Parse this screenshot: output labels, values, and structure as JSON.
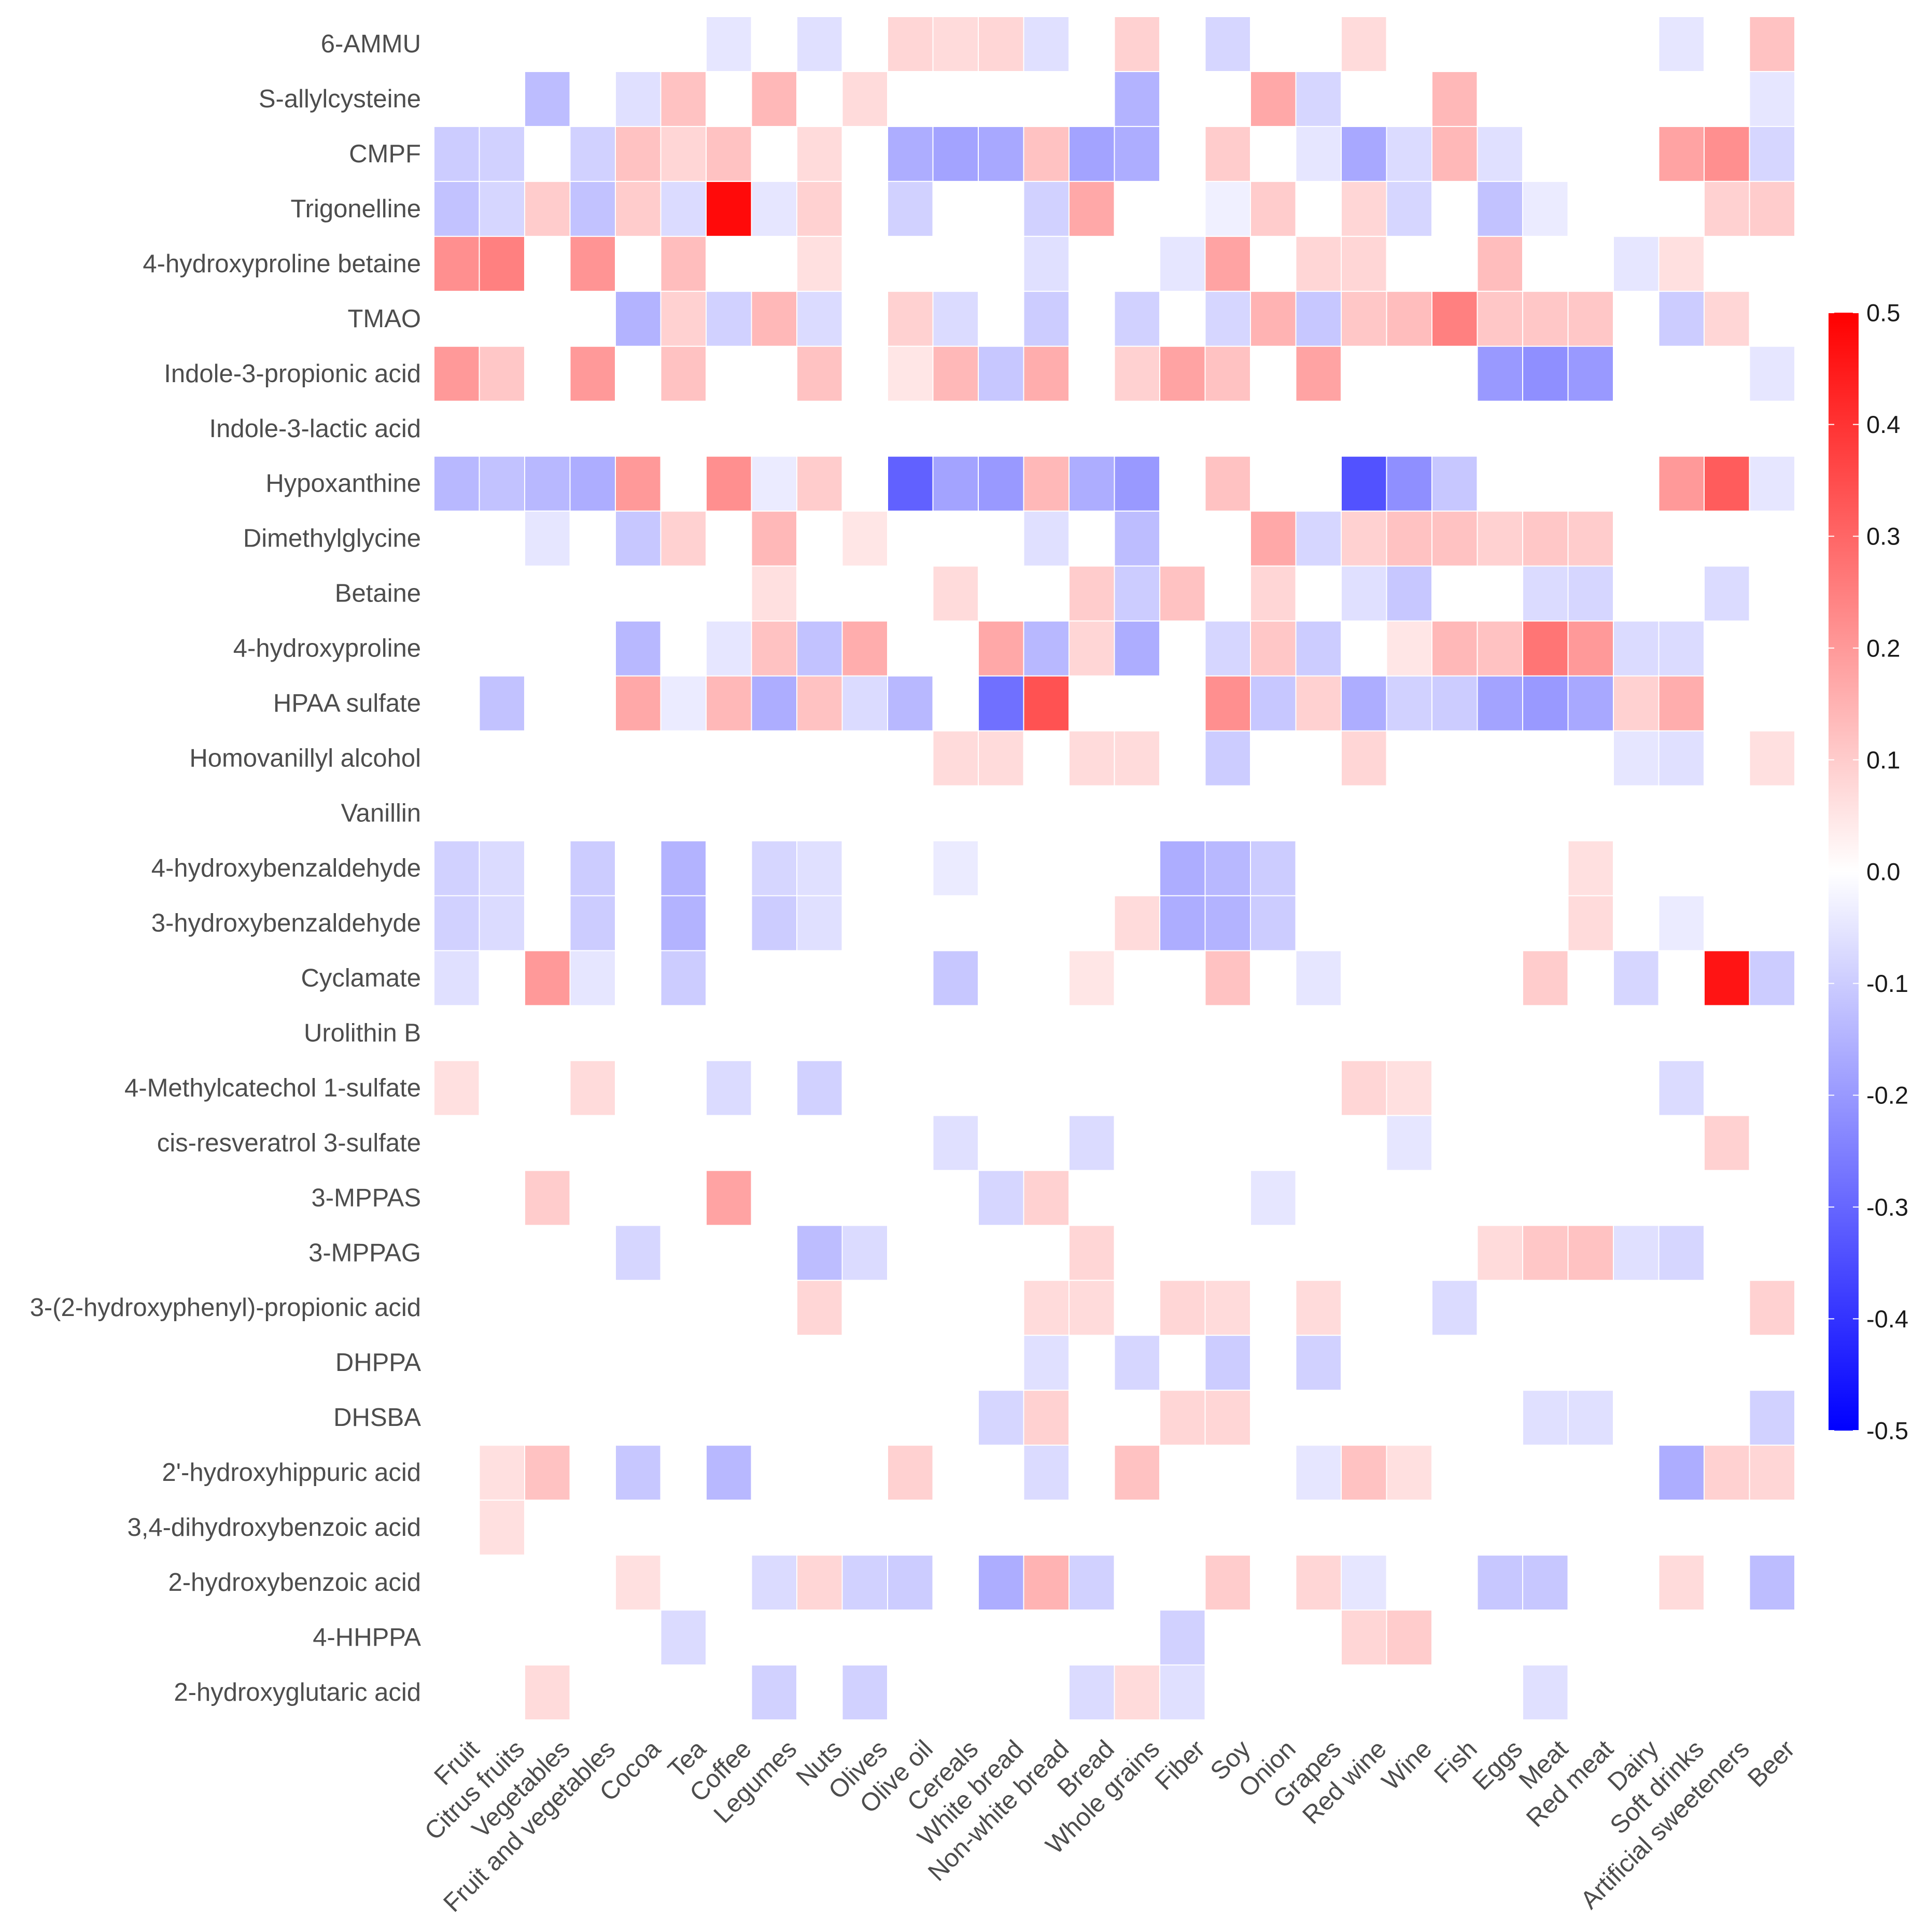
{
  "chart_data": {
    "type": "heatmap",
    "title": "",
    "xlabel": "",
    "ylabel": "",
    "x_categories": [
      "Fruit",
      "Citrus fruits",
      "Vegetables",
      "Fruit and vegetables",
      "Cocoa",
      "Tea",
      "Coffee",
      "Legumes",
      "Nuts",
      "Olives",
      "Olive oil",
      "Cereals",
      "White bread",
      "Non-white bread",
      "Bread",
      "Whole grains",
      "Fiber",
      "Soy",
      "Onion",
      "Grapes",
      "Red wine",
      "Wine",
      "Fish",
      "Eggs",
      "Meat",
      "Red meat",
      "Dairy",
      "Soft drinks",
      "Artificial sweeteners",
      "Beer"
    ],
    "y_categories": [
      "6-AMMU",
      "S-allylcysteine",
      "CMPF",
      "Trigonelline",
      "4-hydroxyproline betaine",
      "TMAO",
      "Indole-3-propionic acid",
      "Indole-3-lactic acid",
      "Hypoxanthine",
      "Dimethylglycine",
      "Betaine",
      "4-hydroxyproline",
      "HPAA sulfate",
      "Homovanillyl alcohol",
      "Vanillin",
      "4-hydroxybenzaldehyde",
      "3-hydroxybenzaldehyde",
      "Cyclamate",
      "Urolithin B",
      "4-Methylcatechol 1-sulfate",
      "cis-resveratrol 3-sulfate",
      "3-MPPAS",
      "3-MPPAG",
      "3-(2-hydroxyphenyl)-propionic acid",
      "DHPPA",
      "DHSBA",
      "2'-hydroxyhippuric acid",
      "3,4-dihydroxybenzoic acid",
      "2-hydroxybenzoic acid",
      "4-HHPPA",
      "2-hydroxyglutaric acid"
    ],
    "values": [
      [
        0,
        0,
        0,
        0,
        0,
        0,
        -0.05,
        0,
        -0.06,
        0,
        0.08,
        0.07,
        0.08,
        -0.06,
        0,
        0.09,
        0,
        -0.08,
        0,
        0,
        0.07,
        0,
        0,
        0,
        0,
        0,
        0,
        -0.05,
        0,
        0.12
      ],
      [
        0,
        0,
        -0.13,
        0,
        -0.06,
        0.12,
        0,
        0.14,
        0,
        0.07,
        0,
        0,
        0,
        0,
        0,
        -0.15,
        0,
        0,
        0.17,
        -0.08,
        0,
        0,
        0.14,
        0,
        0,
        0,
        0,
        0,
        0,
        -0.05
      ],
      [
        -0.1,
        -0.09,
        0,
        -0.09,
        0.12,
        0.08,
        0.12,
        0,
        0.07,
        0,
        -0.16,
        -0.18,
        -0.17,
        0.12,
        -0.18,
        -0.16,
        0,
        0.1,
        0,
        -0.05,
        -0.17,
        -0.07,
        0.14,
        -0.06,
        0,
        0,
        0,
        0.18,
        0.22,
        -0.08
      ],
      [
        -0.12,
        -0.08,
        0.1,
        -0.12,
        0.1,
        -0.07,
        0.48,
        -0.05,
        0.09,
        0,
        -0.09,
        0,
        0,
        -0.09,
        0.17,
        0,
        0,
        -0.03,
        0.1,
        0,
        0.08,
        -0.08,
        0,
        -0.12,
        -0.04,
        0,
        0,
        0,
        0.09,
        0.1
      ],
      [
        0.22,
        0.25,
        0,
        0.21,
        0,
        0.13,
        0,
        0,
        0.06,
        0,
        0,
        0,
        0,
        -0.06,
        0,
        0,
        -0.05,
        0.18,
        0,
        0.08,
        0.08,
        0,
        0,
        0.13,
        0,
        0,
        -0.05,
        0.06,
        0,
        0
      ],
      [
        0,
        0,
        0,
        0,
        -0.15,
        0.09,
        -0.09,
        0.14,
        -0.07,
        0,
        0.09,
        -0.07,
        0,
        -0.1,
        0,
        -0.09,
        0,
        -0.08,
        0.15,
        -0.11,
        0.11,
        0.13,
        0.25,
        0.11,
        0.11,
        0.11,
        0,
        -0.1,
        0.08,
        0
      ],
      [
        0.2,
        0.11,
        0,
        0.2,
        0,
        0.12,
        0,
        0,
        0.12,
        0,
        0.05,
        0.14,
        -0.11,
        0.16,
        0,
        0.09,
        0.18,
        0.12,
        0,
        0.18,
        0,
        0,
        0,
        -0.2,
        -0.22,
        -0.2,
        0,
        0,
        0,
        -0.05
      ],
      [
        0,
        0,
        0,
        0,
        0,
        0,
        0,
        0,
        0,
        0,
        0,
        0,
        0,
        0,
        0,
        0,
        0,
        0,
        0,
        0,
        0,
        0,
        0,
        0,
        0,
        0,
        0,
        0,
        0,
        0
      ],
      [
        -0.14,
        -0.12,
        -0.14,
        -0.16,
        0.2,
        0,
        0.22,
        -0.04,
        0.1,
        0,
        -0.31,
        -0.18,
        -0.2,
        0.14,
        -0.16,
        -0.2,
        0,
        0.12,
        0,
        0,
        -0.34,
        -0.22,
        -0.11,
        0,
        0,
        0,
        0,
        0.2,
        0.32,
        -0.05
      ],
      [
        0,
        0,
        -0.05,
        0,
        -0.11,
        0.09,
        0,
        0.14,
        0,
        0.05,
        0,
        0,
        0,
        -0.06,
        0,
        -0.13,
        0,
        0,
        0.17,
        -0.08,
        0.09,
        0.12,
        0.12,
        0.09,
        0.11,
        0.1,
        0,
        0,
        0,
        0
      ],
      [
        0,
        0,
        0,
        0,
        0,
        0,
        0,
        0.06,
        0,
        0,
        0,
        0.07,
        0,
        0,
        0.1,
        -0.1,
        0.12,
        0,
        0.08,
        0,
        -0.06,
        -0.11,
        0,
        0,
        -0.07,
        -0.08,
        0,
        0,
        -0.07,
        0
      ],
      [
        0,
        0,
        0,
        0,
        -0.14,
        0,
        -0.05,
        0.12,
        -0.12,
        0.16,
        0,
        0,
        0.17,
        -0.14,
        0.08,
        -0.16,
        0,
        -0.08,
        0.11,
        -0.1,
        0,
        0.05,
        0.14,
        0.12,
        0.27,
        0.2,
        -0.07,
        -0.07,
        0,
        0
      ],
      [
        0,
        -0.12,
        0,
        0,
        0.17,
        -0.04,
        0.14,
        -0.16,
        0.12,
        -0.07,
        -0.14,
        0,
        -0.28,
        0.34,
        0,
        0,
        0,
        0.22,
        -0.11,
        0.09,
        -0.16,
        -0.09,
        -0.1,
        -0.18,
        -0.2,
        -0.17,
        0.09,
        0.16,
        0,
        0
      ],
      [
        0,
        0,
        0,
        0,
        0,
        0,
        0,
        0,
        0,
        0,
        0,
        0.07,
        0.07,
        0,
        0.07,
        0.07,
        0,
        -0.1,
        0,
        0,
        0.08,
        0,
        0,
        0,
        0,
        0,
        -0.05,
        -0.06,
        0,
        0.06
      ],
      [
        0,
        0,
        0,
        0,
        0,
        0,
        0,
        0,
        0,
        0,
        0,
        0,
        0,
        0,
        0,
        0,
        0,
        0,
        0,
        0,
        0,
        0,
        0,
        0,
        0,
        0,
        0,
        0,
        0,
        0
      ],
      [
        -0.09,
        -0.07,
        0,
        -0.1,
        0,
        -0.15,
        0,
        -0.08,
        -0.06,
        0,
        0,
        -0.04,
        0,
        0,
        0,
        0,
        -0.16,
        -0.14,
        -0.1,
        0,
        0,
        0,
        0,
        0,
        0,
        0.06,
        0,
        0,
        0,
        0
      ],
      [
        -0.09,
        -0.07,
        0,
        -0.1,
        0,
        -0.15,
        0,
        -0.1,
        -0.06,
        0,
        0,
        0,
        0,
        0,
        0,
        0.07,
        -0.16,
        -0.15,
        -0.1,
        0,
        0,
        0,
        0,
        0,
        0,
        0.07,
        0,
        -0.04,
        0,
        0
      ],
      [
        -0.06,
        0,
        0.2,
        -0.05,
        0,
        -0.1,
        0,
        0,
        0,
        0,
        0,
        -0.11,
        0,
        0,
        0.05,
        0,
        0,
        0.12,
        0,
        -0.05,
        0,
        0,
        0,
        0,
        0.1,
        0,
        -0.08,
        0,
        0.46,
        -0.1
      ],
      [
        0,
        0,
        0,
        0,
        0,
        0,
        0,
        0,
        0,
        0,
        0,
        0,
        0,
        0,
        0,
        0,
        0,
        0,
        0,
        0,
        0,
        0,
        0,
        0,
        0,
        0,
        0,
        0,
        0,
        0
      ],
      [
        0.06,
        0,
        0,
        0.07,
        0,
        0,
        -0.07,
        0,
        -0.09,
        0,
        0,
        0,
        0,
        0,
        0,
        0,
        0,
        0,
        0,
        0,
        0.08,
        0.06,
        0,
        0,
        0,
        0,
        0,
        -0.07,
        0,
        0
      ],
      [
        0,
        0,
        0,
        0,
        0,
        0,
        0,
        0,
        0,
        0,
        0,
        -0.06,
        0,
        0,
        -0.07,
        0,
        0,
        0,
        0,
        0,
        0,
        -0.05,
        0,
        0,
        0,
        0,
        0,
        0,
        0.09,
        0
      ],
      [
        0,
        0,
        0.1,
        0,
        0,
        0,
        0.18,
        0,
        0,
        0,
        0,
        0,
        -0.08,
        0.09,
        0,
        0,
        0,
        0,
        -0.05,
        0,
        0,
        0,
        0,
        0,
        0,
        0,
        0,
        0,
        0,
        0
      ],
      [
        0,
        0,
        0,
        0,
        -0.08,
        0,
        0,
        0,
        -0.13,
        -0.07,
        0,
        0,
        0,
        0,
        0.08,
        0,
        0,
        0,
        0,
        0,
        0,
        0,
        0,
        0.07,
        0.11,
        0.12,
        -0.06,
        -0.08,
        0,
        0
      ],
      [
        0,
        0,
        0,
        0,
        0,
        0,
        0,
        0,
        0.08,
        0,
        0,
        0,
        0,
        0.07,
        0.07,
        0,
        0.08,
        0.07,
        0,
        0.07,
        0,
        0,
        -0.07,
        0,
        0,
        0,
        0,
        0,
        0,
        0.09
      ],
      [
        0,
        0,
        0,
        0,
        0,
        0,
        0,
        0,
        0,
        0,
        0,
        0,
        0,
        -0.06,
        0,
        -0.08,
        0,
        -0.1,
        0,
        -0.09,
        0,
        0,
        0,
        0,
        0,
        0,
        0,
        0,
        0,
        0
      ],
      [
        0,
        0,
        0,
        0,
        0,
        0,
        0,
        0,
        0,
        0,
        0,
        0,
        -0.08,
        0.09,
        0,
        0,
        0.08,
        0.08,
        0,
        0,
        0,
        0,
        0,
        0,
        -0.06,
        -0.06,
        0,
        0,
        0,
        -0.09
      ],
      [
        0,
        0.06,
        0.12,
        0,
        -0.11,
        0,
        -0.14,
        0,
        0,
        0,
        0.09,
        0,
        0,
        -0.07,
        0,
        0.12,
        0,
        0,
        0,
        -0.05,
        0.12,
        0.06,
        0,
        0,
        0,
        0,
        0,
        -0.16,
        0.09,
        0.08
      ],
      [
        0,
        0.06,
        0,
        0,
        0,
        0,
        0,
        0,
        0,
        0,
        0,
        0,
        0,
        0,
        0,
        0,
        0,
        0,
        0,
        0,
        0,
        0,
        0,
        0,
        0,
        0,
        0,
        0,
        0,
        0
      ],
      [
        0,
        0,
        0,
        0,
        0.06,
        0,
        0,
        -0.07,
        0.08,
        -0.09,
        -0.1,
        0,
        -0.16,
        0.15,
        -0.09,
        0,
        0,
        0.1,
        0,
        0.08,
        -0.05,
        0,
        0,
        -0.11,
        -0.11,
        0,
        0,
        0.07,
        0,
        -0.13
      ],
      [
        0,
        0,
        0,
        0,
        0,
        -0.07,
        0,
        0,
        0,
        0,
        0,
        0,
        0,
        0,
        0,
        0,
        -0.09,
        0,
        0,
        0,
        0.08,
        0.1,
        0,
        0,
        0,
        0,
        0,
        0,
        0,
        0
      ],
      [
        0,
        0,
        0.07,
        0,
        0,
        0,
        0,
        -0.09,
        0,
        -0.09,
        0,
        0,
        0,
        0,
        -0.07,
        0.07,
        -0.06,
        0,
        0,
        0,
        0,
        0,
        0,
        0,
        -0.06,
        0,
        0,
        0,
        0,
        0
      ]
    ],
    "colorbar": {
      "min": -0.5,
      "max": 0.5,
      "low_color": "#0000ff",
      "mid_color": "#ffffff",
      "high_color": "#ff0000",
      "ticks": [
        "0.5",
        "0.4",
        "0.3",
        "0.2",
        "0.1",
        "0.0",
        "-0.1",
        "-0.2",
        "-0.3",
        "-0.4",
        "-0.5"
      ]
    }
  }
}
